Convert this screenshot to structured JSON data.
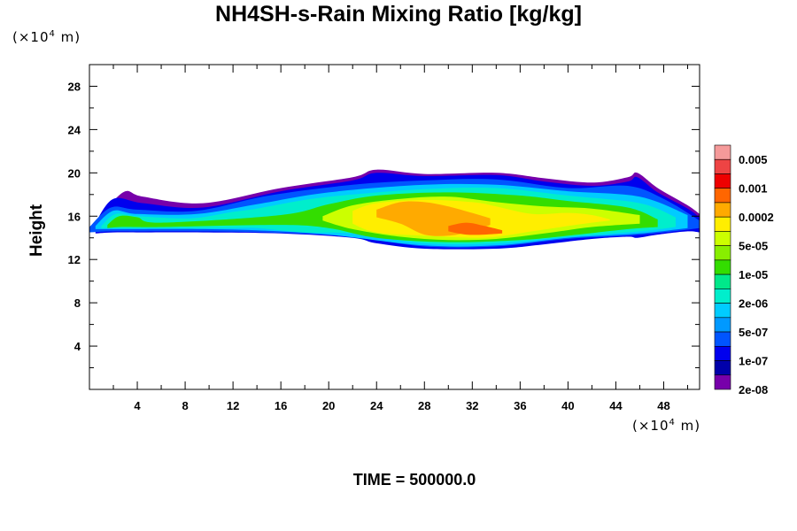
{
  "chart_data": {
    "type": "heatmap",
    "title": "NH4SH-s-Rain Mixing Ratio [kg/kg]",
    "ylabel": "Height",
    "xlabel": "",
    "x_unit": {
      "prefix": "(×10",
      "exp": "4",
      "suffix": " m)"
    },
    "y_unit": {
      "prefix": "(×10",
      "exp": "4",
      "suffix": " m)"
    },
    "xlim": [
      0,
      51
    ],
    "ylim": [
      0,
      30
    ],
    "x_ticks": [
      4,
      8,
      12,
      16,
      20,
      24,
      28,
      32,
      36,
      40,
      44,
      48
    ],
    "y_ticks": [
      4,
      8,
      12,
      16,
      20,
      24,
      28
    ],
    "footer": "TIME = 500000.0",
    "colorbar": {
      "colors": [
        "#f59a9a",
        "#ee4444",
        "#ee0000",
        "#ff6600",
        "#ffaa00",
        "#ffee00",
        "#ccff00",
        "#88ee00",
        "#33dd00",
        "#00e88a",
        "#00eecc",
        "#00ccff",
        "#0099ff",
        "#0055ff",
        "#0000ee",
        "#0000aa",
        "#7700aa"
      ],
      "labels": [
        "0.005",
        "0.001",
        "0.0002",
        "5e-05",
        "1e-05",
        "2e-06",
        "5e-07",
        "1e-07",
        "2e-08"
      ]
    },
    "layers": [
      {
        "level": 0,
        "color": "#7700aa",
        "x": [
          1.5,
          3.0,
          4.5,
          9.5,
          16.0,
          22.0,
          24.0,
          28.0,
          34.0,
          38.0,
          42.0,
          45.0,
          45.8,
          47.5,
          50.0,
          51.0
        ],
        "top": [
          16.8,
          18.3,
          17.8,
          17.2,
          18.6,
          19.6,
          20.3,
          19.9,
          20.0,
          19.5,
          19.1,
          19.6,
          20.0,
          18.6,
          17.0,
          16.2
        ],
        "bottom": [
          14.6,
          14.9,
          14.9,
          14.8,
          14.6,
          14.2,
          13.7,
          13.1,
          13.1,
          13.6,
          14.1,
          14.3,
          14.2,
          14.6,
          14.7,
          14.8
        ]
      },
      {
        "level": 1,
        "color": "#0000ee",
        "x": [
          0.5,
          2.0,
          4.5,
          9.5,
          16.0,
          22.0,
          24.0,
          28.0,
          34.0,
          38.0,
          42.0,
          45.0,
          45.8,
          47.5,
          50.0,
          51.0
        ],
        "top": [
          15.4,
          17.6,
          17.2,
          16.8,
          18.3,
          19.3,
          20.0,
          19.7,
          19.8,
          19.2,
          18.8,
          19.2,
          19.6,
          18.2,
          16.7,
          15.9
        ],
        "bottom": [
          14.4,
          14.5,
          14.5,
          14.5,
          14.4,
          14.0,
          13.5,
          13.0,
          13.0,
          13.4,
          13.9,
          14.1,
          14.0,
          14.3,
          14.6,
          14.5
        ]
      },
      {
        "level": 2,
        "color": "#0055ff",
        "x": [
          0.0,
          1.8,
          4.0,
          9.0,
          15.0,
          22.0,
          28.0,
          34.0,
          40.0,
          45.0,
          48.0,
          51.0
        ],
        "top": [
          15.0,
          16.8,
          16.6,
          16.5,
          17.9,
          18.9,
          19.3,
          19.4,
          18.6,
          18.8,
          17.6,
          15.6
        ],
        "bottom": [
          14.5,
          14.6,
          14.6,
          14.6,
          14.5,
          14.1,
          13.2,
          13.2,
          13.9,
          14.2,
          14.5,
          14.9
        ]
      },
      {
        "level": 3,
        "color": "#00ccff",
        "x": [
          0.5,
          2.0,
          4.0,
          9.0,
          14.0,
          20.0,
          28.0,
          34.0,
          40.0,
          46.0,
          50.0
        ],
        "top": [
          15.1,
          16.5,
          16.2,
          16.2,
          17.1,
          18.2,
          18.9,
          18.9,
          18.3,
          17.8,
          16.1
        ],
        "bottom": [
          14.8,
          14.8,
          14.8,
          14.8,
          14.7,
          14.3,
          13.3,
          13.3,
          14.0,
          14.4,
          14.9
        ]
      },
      {
        "level": 4,
        "color": "#00eecc",
        "x": [
          1.0,
          2.2,
          4.0,
          8.5,
          12.0,
          14.0,
          18.0,
          22.0,
          28.0,
          34.0,
          40.0,
          46.0,
          49.0
        ],
        "top": [
          15.1,
          16.2,
          16.0,
          15.8,
          16.4,
          16.7,
          17.5,
          18.0,
          18.5,
          18.6,
          17.9,
          17.2,
          15.9
        ],
        "bottom": [
          14.9,
          14.9,
          14.9,
          14.9,
          14.9,
          14.9,
          14.5,
          14.4,
          13.5,
          13.5,
          14.1,
          14.6,
          15.0
        ]
      },
      {
        "level": 5,
        "color": "#33dd00",
        "x": [
          1.5,
          2.5,
          4.0,
          6.0,
          16.0,
          20.0,
          24.0,
          30.0,
          36.0,
          40.0,
          45.0,
          47.5
        ],
        "top": [
          15.2,
          16.0,
          15.9,
          15.4,
          16.1,
          17.1,
          17.9,
          18.2,
          17.9,
          17.4,
          16.8,
          15.7
        ],
        "bottom": [
          14.9,
          15.0,
          15.0,
          15.0,
          15.2,
          14.9,
          14.0,
          13.6,
          13.8,
          14.2,
          14.8,
          15.0
        ]
      },
      {
        "level": 6,
        "color": "#ccff00",
        "x": [
          19.5,
          22.0,
          26.0,
          30.0,
          34.0,
          38.0,
          42.0,
          46.0
        ],
        "top": [
          16.0,
          17.0,
          17.6,
          17.8,
          17.3,
          16.9,
          16.7,
          16.1
        ],
        "bottom": [
          15.6,
          14.8,
          14.1,
          13.8,
          13.9,
          14.4,
          15.0,
          15.3
        ]
      },
      {
        "level": 7,
        "color": "#ffee00",
        "x": [
          22.0,
          24.0,
          28.0,
          32.0,
          34.0,
          37.0,
          40.0,
          42.0,
          43.5
        ],
        "top": [
          16.5,
          17.2,
          17.5,
          17.3,
          16.9,
          16.2,
          16.3,
          16.1,
          15.7
        ],
        "bottom": [
          15.3,
          14.5,
          14.2,
          14.0,
          14.1,
          14.6,
          15.1,
          15.4,
          15.6
        ]
      },
      {
        "level": 8,
        "color": "#ffaa00",
        "x": [
          24.0,
          26.0,
          28.0,
          30.0,
          32.0,
          33.5
        ],
        "top": [
          16.6,
          17.3,
          17.3,
          16.9,
          16.3,
          15.8
        ],
        "bottom": [
          15.9,
          15.3,
          14.3,
          14.2,
          14.6,
          15.2
        ]
      },
      {
        "level": 9,
        "color": "#ff6600",
        "x": [
          30.0,
          31.5,
          33.0,
          34.5
        ],
        "top": [
          15.1,
          15.4,
          15.1,
          14.7
        ],
        "bottom": [
          14.6,
          14.3,
          14.3,
          14.4
        ]
      }
    ]
  }
}
